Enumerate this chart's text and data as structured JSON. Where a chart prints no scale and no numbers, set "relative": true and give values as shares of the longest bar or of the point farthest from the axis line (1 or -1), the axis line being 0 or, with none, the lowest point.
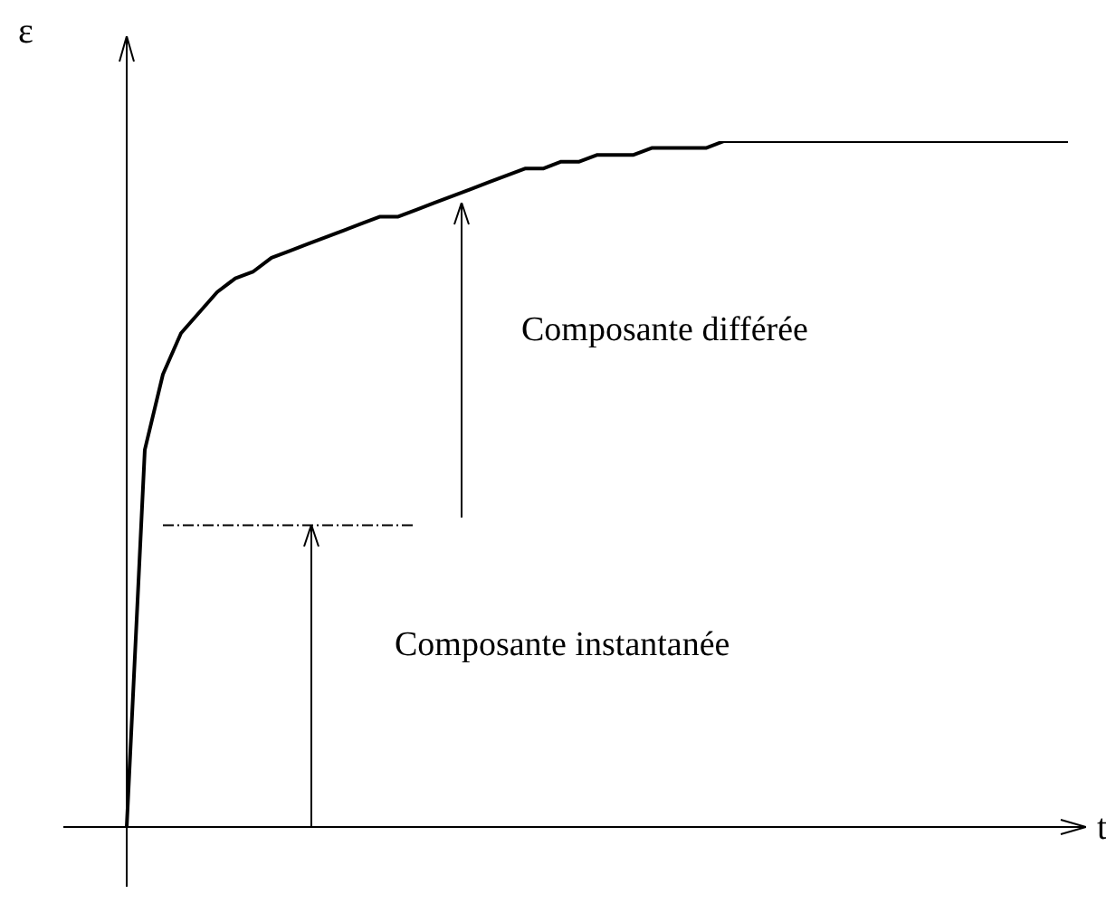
{
  "chart_data": {
    "type": "line",
    "relative": true,
    "xlabel": "t",
    "ylabel": "ε",
    "grid": false,
    "legend": false,
    "marker": "none",
    "annotations": [
      "Composante différée",
      "Composante instantanée"
    ],
    "categories": [
      null,
      null,
      null,
      null,
      null,
      null,
      null,
      null,
      null,
      null,
      null,
      null,
      null,
      null,
      null,
      null,
      null,
      null,
      null,
      null,
      null,
      null,
      null,
      null,
      null,
      null,
      null,
      null,
      null,
      null,
      null,
      null,
      null,
      null,
      null,
      null,
      null,
      null,
      null,
      null,
      null,
      null,
      null,
      null,
      null,
      null,
      null,
      null,
      null,
      null,
      null,
      null,
      null
    ],
    "series": [
      {
        "color": "#000000",
        "values": [
          0,
          0.55,
          0.66,
          0.72,
          0.75,
          0.78,
          0.8,
          0.81,
          0.83,
          0.84,
          0.85,
          0.86,
          0.87,
          0.88,
          0.89,
          0.89,
          0.9,
          0.91,
          0.92,
          0.93,
          0.94,
          0.95,
          0.96,
          0.96,
          0.97,
          0.97,
          0.98,
          0.98,
          0.98,
          0.99,
          0.99,
          0.99,
          0.99,
          1,
          1,
          1,
          1,
          1,
          1,
          1,
          1,
          1,
          1,
          1,
          1,
          1,
          1,
          1,
          1,
          1,
          1,
          1,
          1
        ]
      },
      {
        "color": "#000000",
        "line_style": "dashed",
        "values": [
          null,
          null,
          0.44,
          0.44,
          0.44,
          0.44,
          0.44,
          0.44,
          0.44,
          0.44,
          0.44,
          0.44,
          0.44,
          0.44,
          0.44,
          0.44,
          0.44,
          null,
          null,
          null,
          null,
          null,
          null,
          null,
          null,
          null,
          null,
          null,
          null,
          null,
          null,
          null,
          null,
          null,
          null,
          null,
          null,
          null,
          null,
          null,
          null,
          null,
          null,
          null,
          null,
          null,
          null,
          null,
          null,
          null,
          null,
          null,
          null
        ]
      }
    ]
  }
}
